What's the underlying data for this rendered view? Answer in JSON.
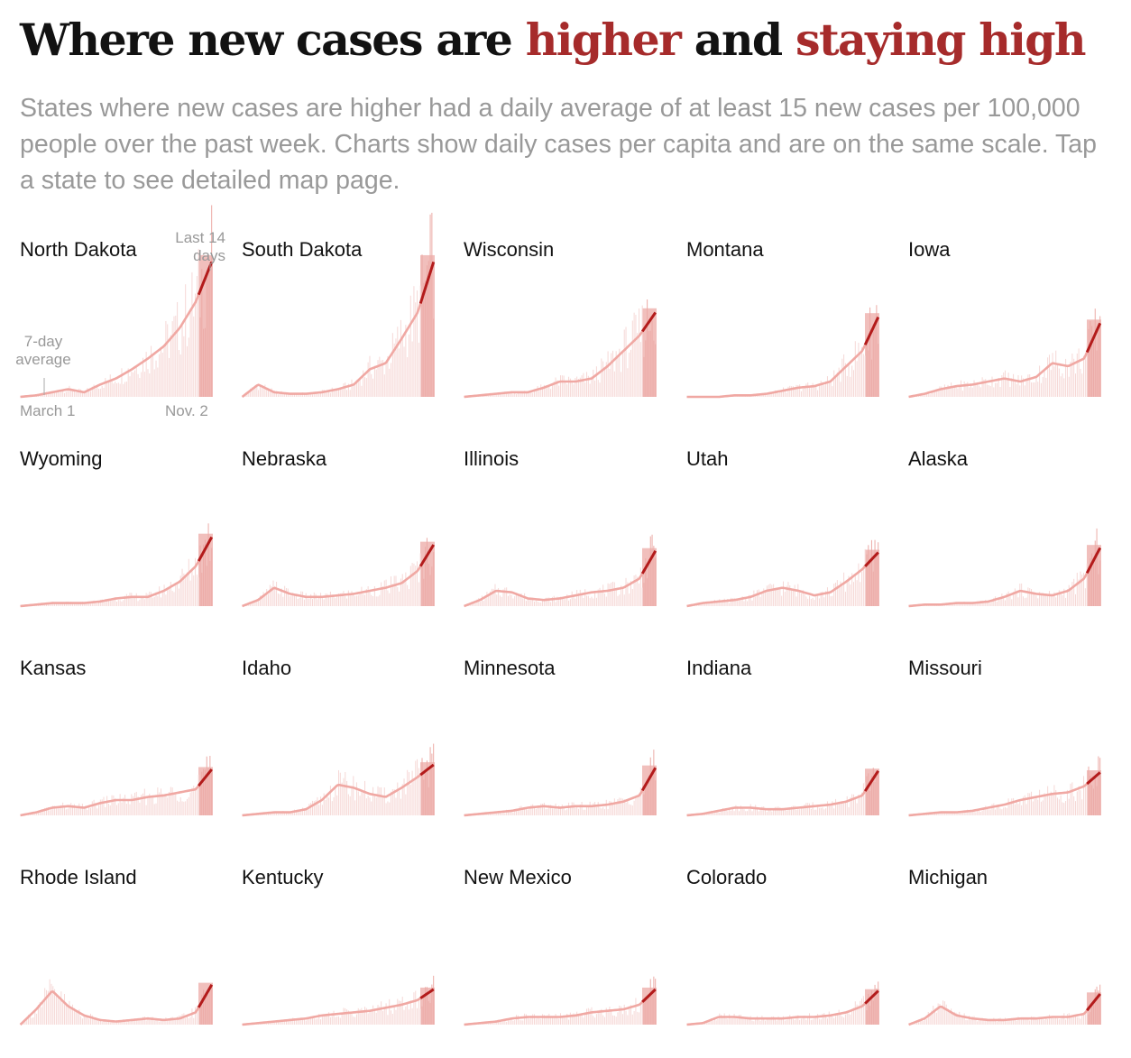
{
  "header": {
    "title_part1": "Where new cases are ",
    "title_highlight1": "higher",
    "title_part2": " and ",
    "title_highlight2": "staying high",
    "subtitle": "States where new cases are higher had a daily average of at least 15 new cases per 100,000 people over the past week. Charts show daily cases per capita and are on the same scale. Tap a state to see detailed map page."
  },
  "annotations": {
    "last14": "Last 14\ndays",
    "avg7": "7-day\naverage",
    "start_date": "March 1",
    "end_date": "Nov. 2"
  },
  "colors": {
    "bar_light": "#f6d8d6",
    "bar_recent": "#ecaaa6",
    "line_light": "#f0a8a3",
    "line_recent": "#b31b1b",
    "title_highlight": "#a62b2b",
    "muted_text": "#999999"
  },
  "chart_data": {
    "type": "small-multiples-area",
    "title": "Where new cases are higher and staying high",
    "x_range": [
      "March 1",
      "Nov. 2"
    ],
    "highlight_period": "Last 14 days",
    "y_scale": "shared (daily cases per capita)",
    "y_domain": [
      0,
      1
    ],
    "shape_points_per_series": 13,
    "states": [
      {
        "name": "North Dakota",
        "shape": [
          0,
          0.01,
          0.03,
          0.05,
          0.03,
          0.08,
          0.12,
          0.18,
          0.25,
          0.33,
          0.45,
          0.62,
          0.88
        ]
      },
      {
        "name": "South Dakota",
        "shape": [
          0,
          0.08,
          0.03,
          0.02,
          0.02,
          0.03,
          0.05,
          0.08,
          0.18,
          0.22,
          0.38,
          0.55,
          0.88
        ]
      },
      {
        "name": "Wisconsin",
        "shape": [
          0,
          0.01,
          0.02,
          0.03,
          0.03,
          0.06,
          0.1,
          0.1,
          0.12,
          0.2,
          0.3,
          0.4,
          0.55
        ]
      },
      {
        "name": "Montana",
        "shape": [
          0,
          0,
          0,
          0.01,
          0.01,
          0.02,
          0.04,
          0.06,
          0.07,
          0.1,
          0.2,
          0.3,
          0.52
        ]
      },
      {
        "name": "Iowa",
        "shape": [
          0,
          0.02,
          0.05,
          0.07,
          0.08,
          0.1,
          0.12,
          0.1,
          0.13,
          0.22,
          0.2,
          0.25,
          0.48
        ]
      },
      {
        "name": "Wyoming",
        "shape": [
          0,
          0.01,
          0.02,
          0.02,
          0.02,
          0.03,
          0.05,
          0.06,
          0.06,
          0.1,
          0.16,
          0.26,
          0.45
        ]
      },
      {
        "name": "Nebraska",
        "shape": [
          0,
          0.04,
          0.12,
          0.08,
          0.06,
          0.06,
          0.07,
          0.08,
          0.1,
          0.12,
          0.15,
          0.23,
          0.4
        ]
      },
      {
        "name": "Illinois",
        "shape": [
          0,
          0.04,
          0.1,
          0.09,
          0.05,
          0.04,
          0.05,
          0.07,
          0.09,
          0.1,
          0.12,
          0.18,
          0.36
        ]
      },
      {
        "name": "Utah",
        "shape": [
          0,
          0.02,
          0.03,
          0.04,
          0.06,
          0.1,
          0.12,
          0.1,
          0.07,
          0.09,
          0.16,
          0.24,
          0.35
        ]
      },
      {
        "name": "Alaska",
        "shape": [
          0,
          0.01,
          0.01,
          0.02,
          0.02,
          0.03,
          0.06,
          0.1,
          0.08,
          0.07,
          0.1,
          0.18,
          0.38
        ]
      },
      {
        "name": "Kansas",
        "shape": [
          0,
          0.02,
          0.05,
          0.06,
          0.05,
          0.08,
          0.1,
          0.1,
          0.12,
          0.13,
          0.15,
          0.17,
          0.3
        ]
      },
      {
        "name": "Idaho",
        "shape": [
          0,
          0.01,
          0.02,
          0.02,
          0.04,
          0.1,
          0.2,
          0.18,
          0.14,
          0.12,
          0.18,
          0.25,
          0.33
        ]
      },
      {
        "name": "Minnesota",
        "shape": [
          0,
          0.01,
          0.02,
          0.03,
          0.05,
          0.06,
          0.05,
          0.06,
          0.06,
          0.07,
          0.09,
          0.13,
          0.31
        ]
      },
      {
        "name": "Indiana",
        "shape": [
          0,
          0.01,
          0.03,
          0.05,
          0.05,
          0.04,
          0.04,
          0.05,
          0.06,
          0.07,
          0.09,
          0.13,
          0.29
        ]
      },
      {
        "name": "Missouri",
        "shape": [
          0,
          0.01,
          0.02,
          0.02,
          0.03,
          0.05,
          0.07,
          0.1,
          0.12,
          0.14,
          0.15,
          0.19,
          0.28
        ]
      },
      {
        "name": "Rhode Island",
        "shape": [
          0,
          0.1,
          0.22,
          0.12,
          0.06,
          0.03,
          0.02,
          0.03,
          0.04,
          0.03,
          0.04,
          0.08,
          0.26
        ]
      },
      {
        "name": "Kentucky",
        "shape": [
          0,
          0.01,
          0.02,
          0.03,
          0.04,
          0.06,
          0.07,
          0.08,
          0.09,
          0.11,
          0.13,
          0.16,
          0.23
        ]
      },
      {
        "name": "New Mexico",
        "shape": [
          0,
          0.01,
          0.02,
          0.04,
          0.05,
          0.05,
          0.05,
          0.06,
          0.08,
          0.09,
          0.1,
          0.13,
          0.23
        ]
      },
      {
        "name": "Colorado",
        "shape": [
          0,
          0.01,
          0.05,
          0.05,
          0.04,
          0.04,
          0.04,
          0.05,
          0.05,
          0.06,
          0.08,
          0.12,
          0.22
        ]
      },
      {
        "name": "Michigan",
        "shape": [
          0,
          0.04,
          0.12,
          0.06,
          0.04,
          0.03,
          0.03,
          0.04,
          0.04,
          0.05,
          0.05,
          0.07,
          0.2
        ]
      }
    ]
  }
}
